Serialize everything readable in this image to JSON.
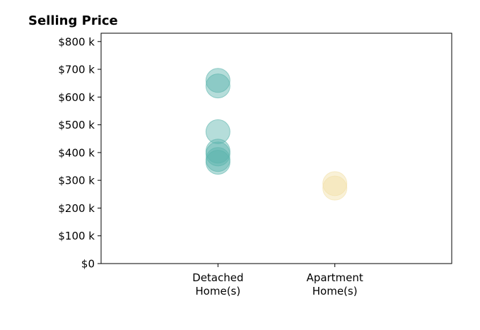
{
  "chart_data": {
    "type": "scatter",
    "title": "Selling Price",
    "xlabel": "",
    "ylabel": "",
    "categories": [
      "Detached\nHome(s)",
      "Apartment\nHome(s)"
    ],
    "y_ticks": [
      {
        "value": 0,
        "label": "$0"
      },
      {
        "value": 100000,
        "label": "$100 k"
      },
      {
        "value": 200000,
        "label": "$200 k"
      },
      {
        "value": 300000,
        "label": "$300 k"
      },
      {
        "value": 400000,
        "label": "$400 k"
      },
      {
        "value": 500000,
        "label": "$500 k"
      },
      {
        "value": 600000,
        "label": "$600 k"
      },
      {
        "value": 700000,
        "label": "$700 k"
      },
      {
        "value": 800000,
        "label": "$800 k"
      }
    ],
    "ylim": [
      0,
      830000
    ],
    "xlim": [
      -1,
      2
    ],
    "grid": false,
    "series": [
      {
        "category_index": 0,
        "color": "#5ab4ac",
        "values": [
          660000,
          640000,
          475000,
          405000,
          395000,
          375000,
          365000
        ]
      },
      {
        "category_index": 1,
        "color": "#f2dfa7",
        "values": [
          288000,
          272000
        ]
      }
    ]
  }
}
